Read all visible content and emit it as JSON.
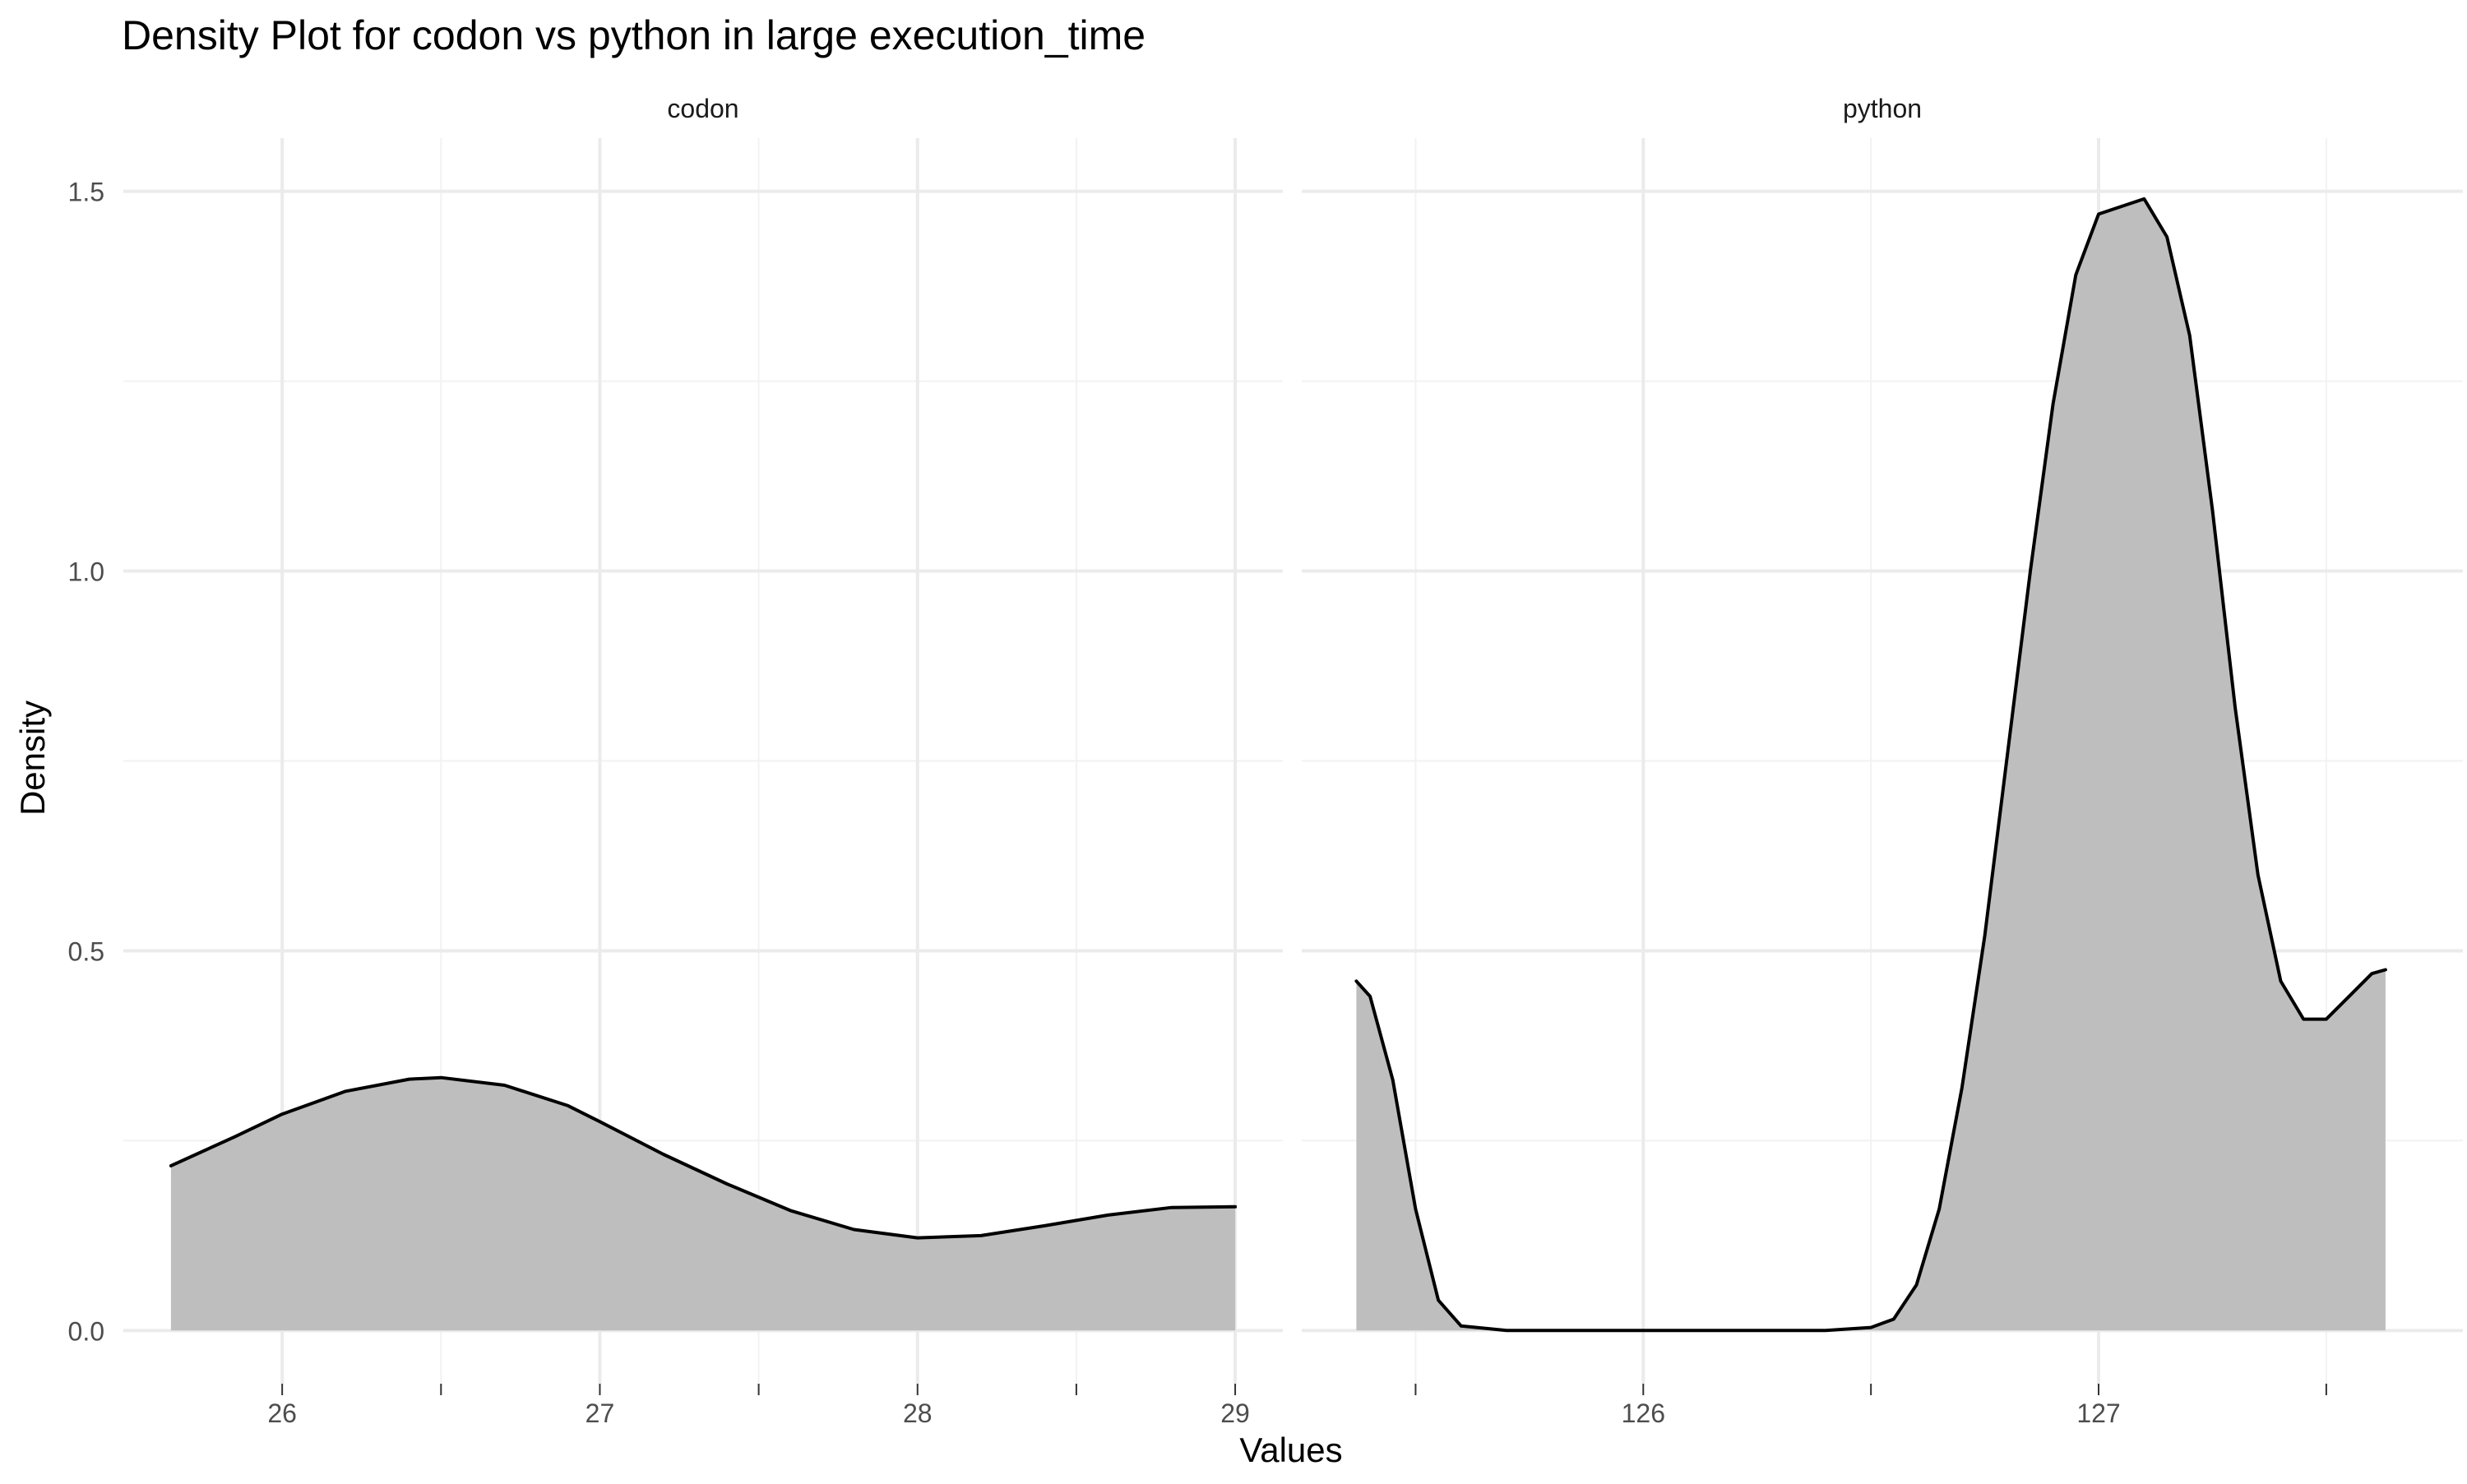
{
  "chart_data": {
    "type": "area",
    "title": "Density Plot for codon vs python in large execution_time",
    "xlabel": "Values",
    "ylabel": "Density",
    "grid": true,
    "legend": "none",
    "colors": {
      "fill": "#bebebe",
      "line": "#000000",
      "grid_major": "#ebebeb",
      "grid_minor": "#f2f2f2",
      "text": "#4d4d4d"
    },
    "y_ticks": [
      "0.0",
      "0.5",
      "1.0",
      "1.5"
    ],
    "y_tick_values": [
      0,
      0.5,
      1.0,
      1.5
    ],
    "ylim": [
      -0.07,
      1.57
    ],
    "panels": [
      {
        "label": "codon",
        "xlim": [
          25.5,
          29.15
        ],
        "x_ticks": [
          "26",
          "27",
          "28",
          "29"
        ],
        "x_tick_values": [
          26,
          27,
          28,
          29
        ],
        "x_minor": [
          26.5,
          27.5,
          28.5
        ],
        "x": [
          25.65,
          25.85,
          26.0,
          26.2,
          26.4,
          26.5,
          26.7,
          26.9,
          27.0,
          27.2,
          27.4,
          27.6,
          27.8,
          28.0,
          28.2,
          28.4,
          28.6,
          28.8,
          29.0
        ],
        "y": [
          0.217,
          0.255,
          0.285,
          0.315,
          0.331,
          0.333,
          0.323,
          0.296,
          0.275,
          0.232,
          0.193,
          0.158,
          0.133,
          0.122,
          0.125,
          0.138,
          0.152,
          0.162,
          0.163
        ]
      },
      {
        "label": "python",
        "xlim": [
          125.25,
          127.8
        ],
        "x_ticks": [
          "126",
          "127"
        ],
        "x_tick_values": [
          126,
          127
        ],
        "x_minor": [
          125.5,
          126.5,
          127.5
        ],
        "x": [
          125.37,
          125.4,
          125.45,
          125.5,
          125.55,
          125.6,
          125.7,
          125.8,
          126.0,
          126.2,
          126.4,
          126.5,
          126.55,
          126.6,
          126.65,
          126.7,
          126.75,
          126.8,
          126.85,
          126.9,
          126.95,
          127.0,
          127.05,
          127.1,
          127.15,
          127.2,
          127.25,
          127.3,
          127.35,
          127.4,
          127.45,
          127.5,
          127.55,
          127.6,
          127.63
        ],
        "y": [
          0.46,
          0.44,
          0.33,
          0.16,
          0.04,
          0.006,
          0.0,
          0.0,
          0.0,
          0.0,
          0.0,
          0.004,
          0.015,
          0.06,
          0.16,
          0.32,
          0.52,
          0.76,
          1.0,
          1.22,
          1.39,
          1.47,
          1.48,
          1.49,
          1.44,
          1.31,
          1.08,
          0.82,
          0.6,
          0.46,
          0.41,
          0.41,
          0.44,
          0.47,
          0.475
        ]
      }
    ]
  }
}
